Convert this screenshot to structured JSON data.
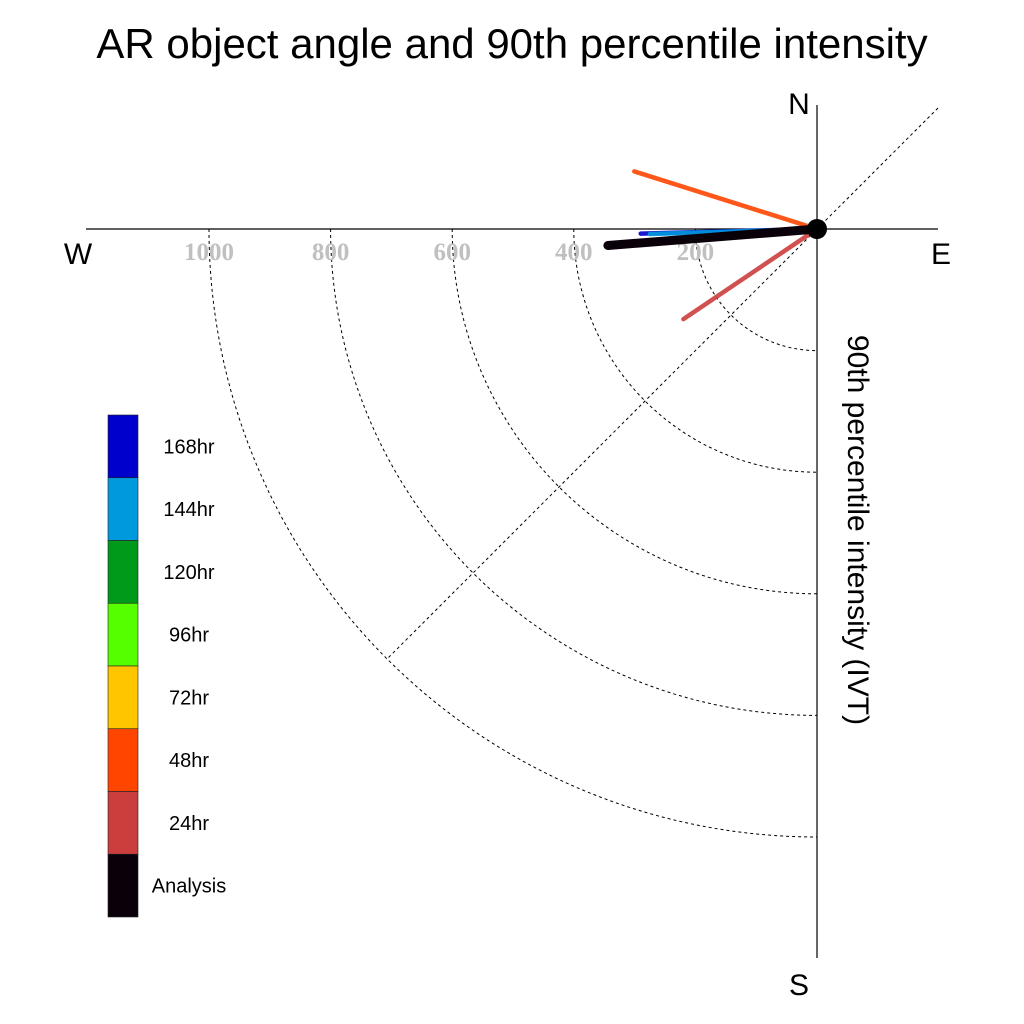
{
  "chart_data": {
    "type": "polar-vector",
    "title": "AR object angle and 90th percentile intensity",
    "radial_label": "90th percentile intensity (IVT)",
    "compass": {
      "n": "N",
      "e": "E",
      "s": "S",
      "w": "W"
    },
    "radial_ticks": [
      {
        "value": 200,
        "label": "200"
      },
      {
        "value": 400,
        "label": "400"
      },
      {
        "value": 600,
        "label": "600"
      },
      {
        "value": 800,
        "label": "800"
      },
      {
        "value": 1000,
        "label": "1000"
      }
    ],
    "series": [
      {
        "name": "168hr",
        "color": "#0000cc",
        "direction_deg": 268.5,
        "intensity": 290
      },
      {
        "name": "144hr",
        "color": "#0099dd",
        "direction_deg": 268.3,
        "intensity": 275
      },
      {
        "name": "48hr",
        "color": "#ff4500",
        "direction_deg": 287.5,
        "intensity": 315
      },
      {
        "name": "24hr",
        "color": "#cc3d3d",
        "direction_deg": 236,
        "intensity": 265
      },
      {
        "name": "Analysis",
        "color": "#0a000a",
        "direction_deg": 265.5,
        "intensity": 345
      }
    ],
    "legend": [
      {
        "label": "168hr",
        "color": "#0000cc"
      },
      {
        "label": "144hr",
        "color": "#0099dd"
      },
      {
        "label": "120hr",
        "color": "#009a1a"
      },
      {
        "label": "96hr",
        "color": "#55ff00"
      },
      {
        "label": "72hr",
        "color": "#ffc600"
      },
      {
        "label": "48hr",
        "color": "#ff4500"
      },
      {
        "label": "24hr",
        "color": "#cc3d3d"
      },
      {
        "label": "Analysis",
        "color": "#0a000a"
      }
    ]
  }
}
